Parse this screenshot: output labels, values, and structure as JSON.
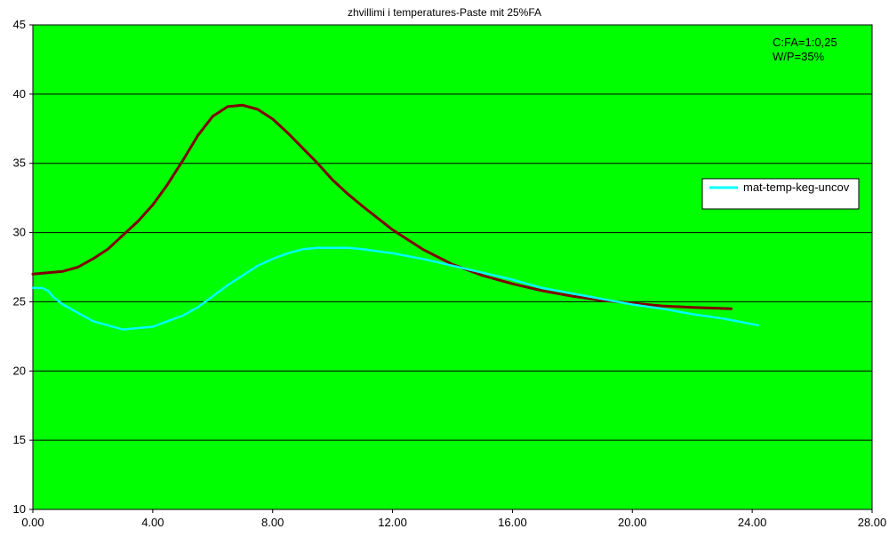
{
  "chart_data": {
    "type": "line",
    "title": "zhvillimi i temperatures-Paste mit 25%FA",
    "xlabel": "",
    "ylabel": "",
    "xlim": [
      0,
      28
    ],
    "ylim": [
      10,
      45
    ],
    "x_ticks": [
      0,
      4,
      8,
      12,
      16,
      20,
      24,
      28
    ],
    "x_tick_labels": [
      "0.00",
      "4.00",
      "8.00",
      "12.00",
      "16.00",
      "20.00",
      "24.00",
      "28.00"
    ],
    "y_ticks": [
      10,
      15,
      20,
      25,
      30,
      35,
      40,
      45
    ],
    "y_tick_labels": [
      "10",
      "15",
      "20",
      "25",
      "30",
      "35",
      "40",
      "45"
    ],
    "grid": "horizontal",
    "legend_position": "right",
    "annotations": [
      "C:FA=1:0,25",
      "W/P=35%"
    ],
    "legend": [
      {
        "label": "mat-temp-keg-uncov",
        "color": "#00ffff"
      }
    ],
    "plot_background": "#00ff00",
    "series": [
      {
        "name": "mat-temp-keg-uncov",
        "color": "#00ffff",
        "x": [
          0.0,
          0.3,
          0.5,
          0.7,
          1.0,
          1.5,
          2.0,
          2.5,
          3.0,
          3.5,
          4.0,
          4.5,
          5.0,
          5.5,
          6.0,
          6.5,
          7.0,
          7.5,
          8.0,
          8.5,
          9.0,
          9.5,
          10.0,
          10.5,
          11.0,
          12.0,
          13.0,
          14.0,
          15.0,
          16.0,
          17.0,
          18.0,
          19.0,
          20.0,
          21.0,
          22.0,
          23.0,
          24.2
        ],
        "y": [
          26.0,
          26.0,
          25.8,
          25.3,
          24.8,
          24.2,
          23.6,
          23.3,
          23.0,
          23.1,
          23.2,
          23.6,
          24.0,
          24.6,
          25.4,
          26.2,
          26.9,
          27.6,
          28.1,
          28.5,
          28.8,
          28.9,
          28.9,
          28.9,
          28.8,
          28.5,
          28.1,
          27.6,
          27.1,
          26.6,
          26.0,
          25.6,
          25.2,
          24.8,
          24.5,
          24.1,
          23.8,
          23.3
        ]
      },
      {
        "name": "",
        "color": "#7f0000",
        "x": [
          0.0,
          0.5,
          1.0,
          1.5,
          2.0,
          2.5,
          3.0,
          3.5,
          4.0,
          4.5,
          5.0,
          5.5,
          6.0,
          6.5,
          7.0,
          7.5,
          8.0,
          8.5,
          9.0,
          9.5,
          10.0,
          10.5,
          11.0,
          12.0,
          13.0,
          14.0,
          15.0,
          16.0,
          17.0,
          18.0,
          19.0,
          20.0,
          21.0,
          22.0,
          23.3
        ],
        "y": [
          27.0,
          27.1,
          27.2,
          27.5,
          28.1,
          28.8,
          29.8,
          30.8,
          32.0,
          33.5,
          35.2,
          37.0,
          38.4,
          39.1,
          39.2,
          38.9,
          38.2,
          37.2,
          36.1,
          35.0,
          33.8,
          32.8,
          31.9,
          30.2,
          28.8,
          27.7,
          26.9,
          26.3,
          25.8,
          25.4,
          25.1,
          24.9,
          24.7,
          24.6,
          24.5
        ]
      }
    ]
  }
}
